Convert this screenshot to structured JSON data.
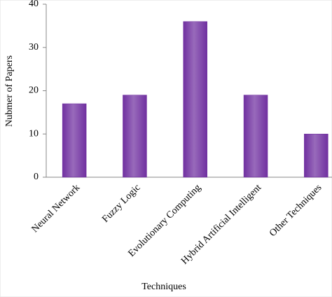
{
  "chart_data": {
    "type": "bar",
    "x_label": "Techniques",
    "y_label": "Nubmer of Papers",
    "categories": [
      "Neural Network",
      "Fuzzy Logic",
      "Evolutionary Computing",
      "Hybrid Artificial Intelligent",
      "Other Techniques"
    ],
    "values": [
      17,
      19,
      36,
      19,
      10
    ],
    "color": "#7030a0",
    "ylim": [
      0,
      40
    ],
    "yticks": [
      0,
      10,
      20,
      30,
      40
    ],
    "grid": false
  }
}
